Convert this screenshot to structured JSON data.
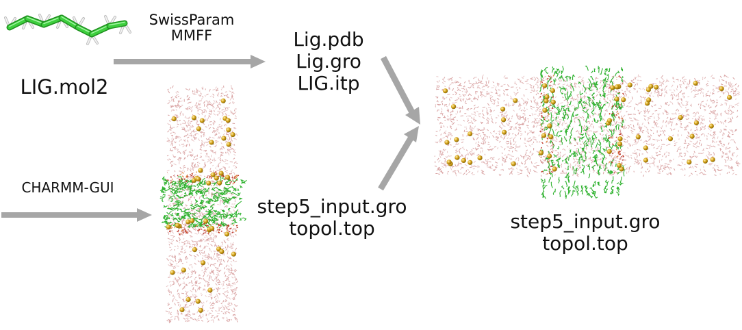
{
  "labels": {
    "swissparam_line1": "SwissParam",
    "swissparam_line2": "MMFF",
    "ligand_input": "LIG.mol2",
    "ligand_out_pdb": "Lig.pdb",
    "ligand_out_gro": "Lig.gro",
    "ligand_out_itp": "LIG.itp",
    "charmm_gui": "CHARMM-GUI",
    "membrane_gro": "step5_input.gro",
    "membrane_top": "topol.top",
    "final_gro": "step5_input.gro",
    "final_top": "topol.top"
  },
  "colors": {
    "arrow": "#a6a6a6",
    "water": "#d9a3a3",
    "lipid_tail": "#2fb22f",
    "lipid_head": "#c0392b",
    "ion": "#d4a017",
    "molecule_carbon": "#3ecf3e",
    "molecule_hydrogen": "#e6e6e6"
  }
}
